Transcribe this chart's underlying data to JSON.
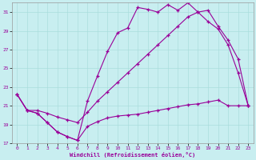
{
  "xlabel": "Windchill (Refroidissement éolien,°C)",
  "bg_color": "#c8eef0",
  "grid_color": "#aadddd",
  "line_color": "#990099",
  "xlim": [
    -0.5,
    23.5
  ],
  "ylim": [
    17,
    32
  ],
  "yticks": [
    17,
    19,
    21,
    23,
    25,
    27,
    29,
    31
  ],
  "xticks": [
    0,
    1,
    2,
    3,
    4,
    5,
    6,
    7,
    8,
    9,
    10,
    11,
    12,
    13,
    14,
    15,
    16,
    17,
    18,
    19,
    20,
    21,
    22,
    23
  ],
  "line1_x": [
    0,
    1,
    2,
    3,
    4,
    5,
    6,
    7,
    8,
    9,
    10,
    11,
    12,
    13,
    14,
    15,
    16,
    17,
    18,
    19,
    20,
    21,
    22,
    23
  ],
  "line1_y": [
    22.2,
    20.5,
    20.2,
    19.2,
    18.2,
    17.7,
    17.3,
    21.5,
    24.2,
    26.8,
    28.8,
    29.3,
    31.5,
    31.3,
    31.0,
    31.8,
    31.2,
    32.0,
    31.0,
    30.0,
    29.2,
    27.5,
    24.5,
    21.0
  ],
  "line2_x": [
    0,
    1,
    2,
    3,
    4,
    5,
    6,
    7,
    8,
    9,
    10,
    11,
    12,
    13,
    14,
    15,
    16,
    17,
    18,
    19,
    20,
    21,
    22,
    23
  ],
  "line2_y": [
    22.2,
    20.5,
    20.5,
    20.2,
    19.8,
    19.5,
    19.2,
    20.3,
    21.5,
    22.5,
    23.5,
    24.5,
    25.5,
    26.5,
    27.5,
    28.5,
    29.5,
    30.5,
    31.0,
    31.2,
    29.5,
    28.0,
    26.0,
    21.0
  ],
  "line3_x": [
    0,
    1,
    2,
    3,
    4,
    5,
    6,
    7,
    8,
    9,
    10,
    11,
    12,
    13,
    14,
    15,
    16,
    17,
    18,
    19,
    20,
    21,
    22,
    23
  ],
  "line3_y": [
    22.2,
    20.5,
    20.2,
    19.2,
    18.2,
    17.7,
    17.3,
    18.8,
    19.3,
    19.7,
    19.9,
    20.0,
    20.1,
    20.3,
    20.5,
    20.7,
    20.9,
    21.1,
    21.2,
    21.4,
    21.6,
    21.0,
    21.0,
    21.0
  ]
}
